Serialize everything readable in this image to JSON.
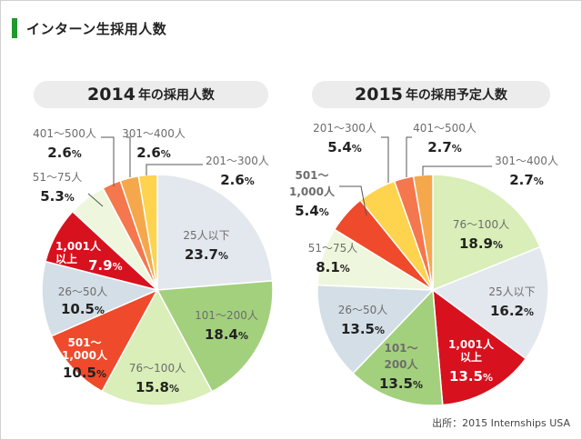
{
  "header": {
    "title": "インターン生採用人数"
  },
  "source": "出所：2015 Internships USA",
  "colors": {
    "slate": "#e3e8ee",
    "green": "#a3d07c",
    "lightgreen": "#d9eeb8",
    "orangered": "#ee4a2b",
    "lightslate": "#d4dee6",
    "red": "#d7111e",
    "pale": "#eef7dd",
    "coral": "#f4774d",
    "orange": "#f5a84b",
    "yellow": "#fed34d",
    "labelGray": "#6d6d6d",
    "valueDark": "#222222"
  },
  "chart_data": [
    {
      "type": "pie",
      "title_year": "2014",
      "title_rest": "年の採用人数",
      "slices": [
        {
          "label": "25人以下",
          "value": 23.7,
          "color": "#e3e8ee"
        },
        {
          "label": "101～200人",
          "value": 18.4,
          "color": "#a3d07c"
        },
        {
          "label": "76～100人",
          "value": 15.8,
          "color": "#d9eeb8"
        },
        {
          "label": "501～1,000人",
          "value": 10.5,
          "color": "#ee4a2b"
        },
        {
          "label": "26～50人",
          "value": 10.5,
          "color": "#d4dee6"
        },
        {
          "label": "1,001人以上",
          "value": 7.9,
          "color": "#d7111e"
        },
        {
          "label": "51～75人",
          "value": 5.3,
          "color": "#eef7dd"
        },
        {
          "label": "401～500人",
          "value": 2.6,
          "color": "#f4774d"
        },
        {
          "label": "301～400人",
          "value": 2.6,
          "color": "#f5a84b"
        },
        {
          "label": "201～300人",
          "value": 2.6,
          "color": "#fed34d"
        }
      ]
    },
    {
      "type": "pie",
      "title_year": "2015",
      "title_rest": "年の採用予定人数",
      "slices": [
        {
          "label": "76～100人",
          "value": 18.9,
          "color": "#d9eeb8"
        },
        {
          "label": "25人以下",
          "value": 16.2,
          "color": "#e3e8ee"
        },
        {
          "label": "1,001人以上",
          "value": 13.5,
          "color": "#d7111e"
        },
        {
          "label": "101～200人",
          "value": 13.5,
          "color": "#a3d07c"
        },
        {
          "label": "26～50人",
          "value": 13.5,
          "color": "#d4dee6"
        },
        {
          "label": "51～75人",
          "value": 8.1,
          "color": "#eef7dd"
        },
        {
          "label": "501～1,000人",
          "value": 5.4,
          "color": "#ee4a2b"
        },
        {
          "label": "201～300人",
          "value": 5.4,
          "color": "#fed34d"
        },
        {
          "label": "401～500人",
          "value": 2.7,
          "color": "#f4774d"
        },
        {
          "label": "301～400人",
          "value": 2.7,
          "color": "#f5a84b"
        }
      ]
    }
  ]
}
